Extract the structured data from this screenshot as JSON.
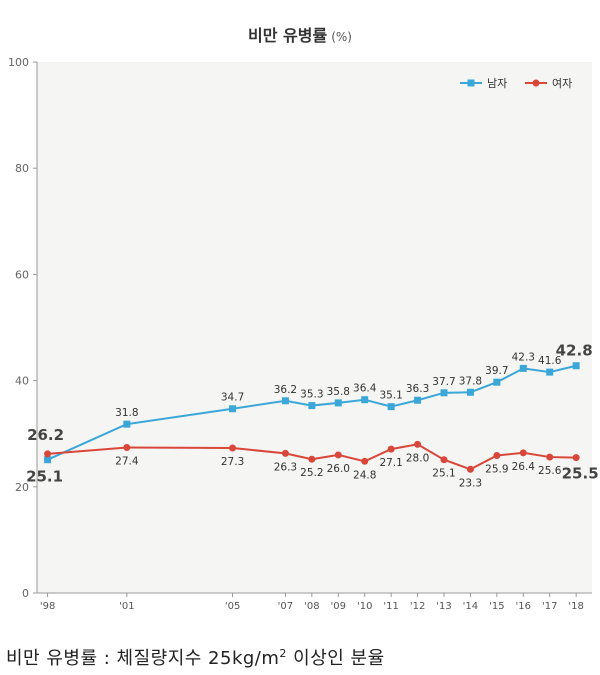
{
  "title": "비만 유병률",
  "title_unit": "(%)",
  "caption": {
    "text": "비만 유병률 : 체질량지수 25kg/m",
    "sup": "2",
    "suffix": " 이상인 분율"
  },
  "chart_data": {
    "type": "line",
    "title": "비만 유병률 (%)",
    "ylim": [
      0,
      100
    ],
    "yticks": [
      0,
      20,
      40,
      60,
      80,
      100
    ],
    "x": [
      1998,
      2001,
      2005,
      2007,
      2008,
      2009,
      2010,
      2011,
      2012,
      2013,
      2014,
      2015,
      2016,
      2017,
      2018
    ],
    "xtick_labels": [
      "'98",
      "'01",
      "'05",
      "'07",
      "'08",
      "'09",
      "'10",
      "'11",
      "'12",
      "'13",
      "'14",
      "'15",
      "'16",
      "'17",
      "'18"
    ],
    "legend_position": "top-right",
    "grid": false,
    "series": [
      {
        "name": "남자",
        "color": "#3aa7d8",
        "marker": "square",
        "values": [
          25.1,
          31.8,
          34.7,
          36.2,
          35.3,
          35.8,
          36.4,
          35.1,
          36.3,
          37.7,
          37.8,
          39.7,
          42.3,
          41.6,
          42.8
        ],
        "labels": [
          "25.1",
          "31.8",
          "34.7",
          "36.2",
          "35.3",
          "35.8",
          "36.4",
          "35.1",
          "36.3",
          "37.7",
          "37.8",
          "39.7",
          "42.3",
          "41.6",
          "42.8"
        ]
      },
      {
        "name": "여자",
        "color": "#d9463a",
        "marker": "circle",
        "values": [
          26.2,
          27.4,
          27.3,
          26.3,
          25.2,
          26.0,
          24.8,
          27.1,
          28.0,
          25.1,
          23.3,
          25.9,
          26.4,
          25.6,
          25.5
        ],
        "labels": [
          "26.2",
          "27.4",
          "27.3",
          "26.3",
          "25.2",
          "26.0",
          "24.8",
          "27.1",
          "28.0",
          "25.1",
          "23.3",
          "25.9",
          "26.4",
          "25.6",
          "25.5"
        ]
      }
    ]
  }
}
